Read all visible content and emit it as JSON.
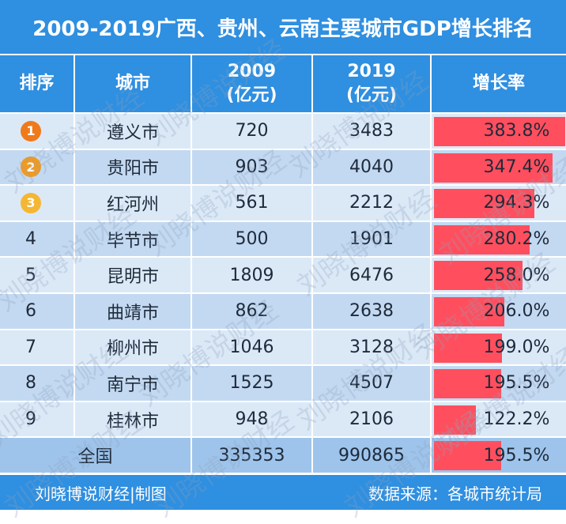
{
  "title": "2009-2019广西、贵州、云南主要城市GDP增长排名",
  "colors": {
    "header_bg": "#2f8fe0",
    "row_light": "#dbe9f7",
    "row_dark": "#c3d9f1",
    "bar": "#ff4f5e",
    "medal_1": "#f07a1a",
    "medal_2": "#f39a1e",
    "medal_3": "#f5b733"
  },
  "headers": {
    "rank": "排序",
    "city": "城市",
    "y2009_year": "2009",
    "y2009_unit": "(亿元)",
    "y2019_year": "2019",
    "y2019_unit": "(亿元)",
    "rate": "增长率"
  },
  "chart_data": {
    "type": "table",
    "title": "2009-2019广西、贵州、云南主要城市GDP增长排名",
    "columns": [
      "排序",
      "城市",
      "2009(亿元)",
      "2019(亿元)",
      "增长率"
    ],
    "rows": [
      {
        "rank": "1",
        "city": "遵义市",
        "gdp2009": "720",
        "gdp2019": "3483",
        "rate_text": "383.8%",
        "rate": 383.8
      },
      {
        "rank": "2",
        "city": "贵阳市",
        "gdp2009": "903",
        "gdp2019": "4040",
        "rate_text": "347.4%",
        "rate": 347.4
      },
      {
        "rank": "3",
        "city": "红河州",
        "gdp2009": "561",
        "gdp2019": "2212",
        "rate_text": "294.3%",
        "rate": 294.3
      },
      {
        "rank": "4",
        "city": "毕节市",
        "gdp2009": "500",
        "gdp2019": "1901",
        "rate_text": "280.2%",
        "rate": 280.2
      },
      {
        "rank": "5",
        "city": "昆明市",
        "gdp2009": "1809",
        "gdp2019": "6476",
        "rate_text": "258.0%",
        "rate": 258.0
      },
      {
        "rank": "6",
        "city": "曲靖市",
        "gdp2009": "862",
        "gdp2019": "2638",
        "rate_text": "206.0%",
        "rate": 206.0
      },
      {
        "rank": "7",
        "city": "柳州市",
        "gdp2009": "1046",
        "gdp2019": "3128",
        "rate_text": "199.0%",
        "rate": 199.0
      },
      {
        "rank": "8",
        "city": "南宁市",
        "gdp2009": "1525",
        "gdp2019": "4507",
        "rate_text": "195.5%",
        "rate": 195.5
      },
      {
        "rank": "9",
        "city": "桂林市",
        "gdp2009": "948",
        "gdp2019": "2106",
        "rate_text": "122.2%",
        "rate": 122.2
      }
    ],
    "total": {
      "label": "全国",
      "gdp2009": "335353",
      "gdp2019": "990865",
      "rate_text": "195.5%",
      "rate": 195.5
    }
  },
  "footer": {
    "left": "刘晓博说财经|制图",
    "right": "数据来源：各城市统计局"
  },
  "watermark": "刘晓博说财经"
}
